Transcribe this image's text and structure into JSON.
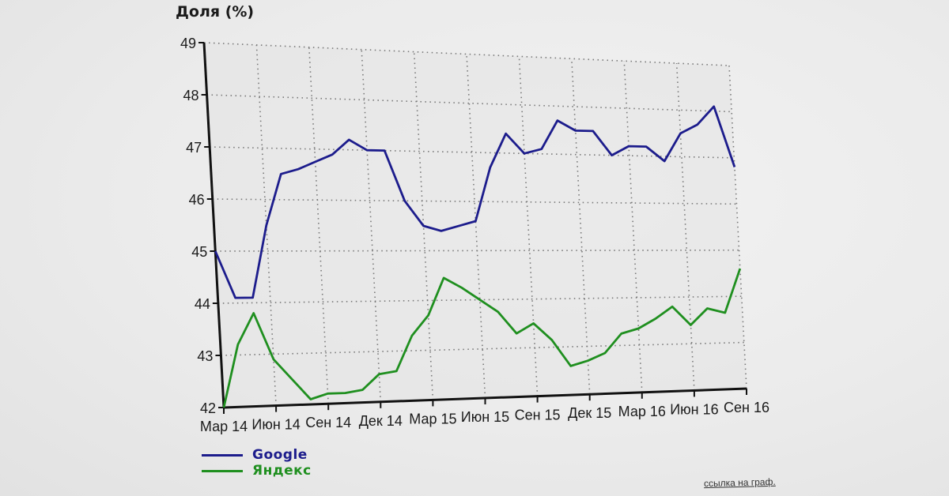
{
  "chart_data": {
    "type": "line",
    "title": "Доля (%)",
    "xlabel": "",
    "ylabel": "Доля (%)",
    "ylim": [
      42,
      49
    ],
    "yticks": [
      42,
      43,
      44,
      45,
      46,
      47,
      48,
      49
    ],
    "grid": true,
    "legend_position": "bottom-left",
    "x_tick_labels": [
      "Мар 14",
      "Июн 14",
      "Сен 14",
      "Дек 14",
      "Мар 15",
      "Июн 15",
      "Сен 15",
      "Дек 15",
      "Мар 16",
      "Июн 16",
      "Сен 16"
    ],
    "x": [
      "2014-03",
      "2014-04",
      "2014-05",
      "2014-06",
      "2014-07",
      "2014-08",
      "2014-09",
      "2014-10",
      "2014-11",
      "2014-12",
      "2015-01",
      "2015-02",
      "2015-03",
      "2015-04",
      "2015-05",
      "2015-06",
      "2015-07",
      "2015-08",
      "2015-09",
      "2015-10",
      "2015-11",
      "2015-12",
      "2016-01",
      "2016-02",
      "2016-03",
      "2016-04",
      "2016-05",
      "2016-06",
      "2016-07",
      "2016-08",
      "2016-09"
    ],
    "series": [
      {
        "name": "Google",
        "color": "#1c1c8c",
        "values": [
          45.0,
          44.1,
          44.1,
          45.5,
          46.5,
          46.6,
          46.75,
          46.9,
          47.2,
          47.0,
          47.0,
          46.0,
          45.5,
          45.4,
          45.5,
          45.6,
          46.7,
          47.4,
          47.0,
          47.1,
          47.7,
          47.5,
          47.5,
          47.0,
          47.2,
          47.2,
          46.9,
          47.5,
          47.7,
          48.1,
          46.8
        ]
      },
      {
        "name": "Яндекс",
        "color": "#1f8f1f",
        "values": [
          42.0,
          43.2,
          43.8,
          42.9,
          42.5,
          42.1,
          42.2,
          42.2,
          42.25,
          42.55,
          42.6,
          43.3,
          43.7,
          44.45,
          44.25,
          44.0,
          43.75,
          43.3,
          43.5,
          43.15,
          42.6,
          42.7,
          42.85,
          43.25,
          43.35,
          43.55,
          43.8,
          43.4,
          43.75,
          43.65,
          44.6
        ]
      }
    ]
  },
  "legend": {
    "items": [
      {
        "label": "Google",
        "color": "#1c1c8c"
      },
      {
        "label": "Яндекс",
        "color": "#1f8f1f"
      }
    ]
  },
  "footer": {
    "link_text": "ссылка на граф."
  }
}
